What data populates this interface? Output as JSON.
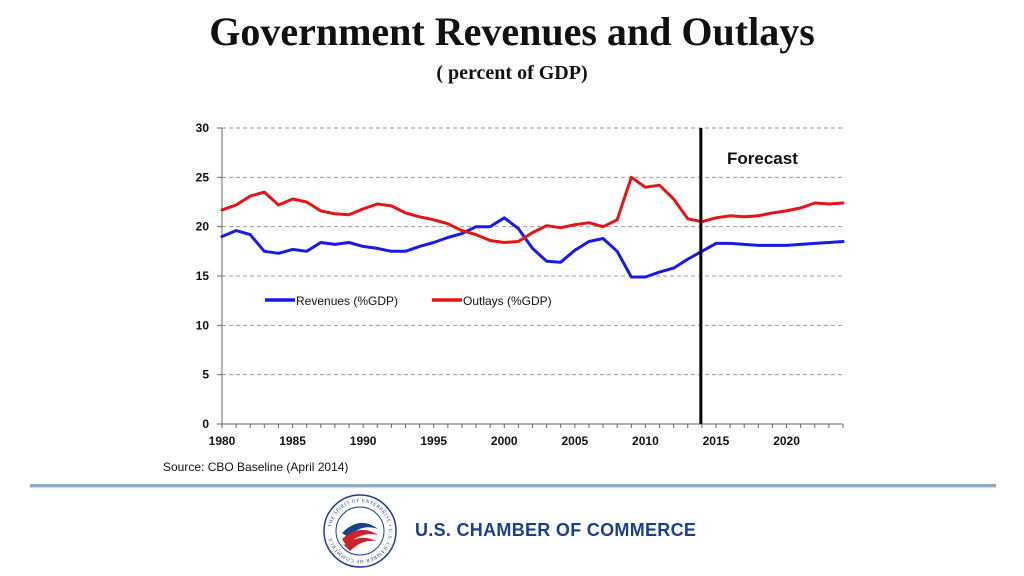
{
  "header": {
    "title": "Government Revenues and Outlays",
    "subtitle": "( percent of GDP)"
  },
  "chart_data": {
    "type": "line",
    "title": "Government Revenues and Outlays",
    "subtitle": "( percent of GDP)",
    "xlabel": "",
    "ylabel": "",
    "xlim": [
      1980,
      2024
    ],
    "ylim": [
      0,
      30
    ],
    "y_ticks": [
      "0",
      "5",
      "10",
      "15",
      "20",
      "25",
      "30"
    ],
    "x_ticks": [
      "1980",
      "1985",
      "1990",
      "1995",
      "2000",
      "2005",
      "2010",
      "2015",
      "2020"
    ],
    "grid": "horizontal dashed",
    "legend_position": "middle-left",
    "x": [
      1980,
      1981,
      1982,
      1983,
      1984,
      1985,
      1986,
      1987,
      1988,
      1989,
      1990,
      1991,
      1992,
      1993,
      1994,
      1995,
      1996,
      1997,
      1998,
      1999,
      2000,
      2001,
      2002,
      2003,
      2004,
      2005,
      2006,
      2007,
      2008,
      2009,
      2010,
      2011,
      2012,
      2013,
      2014,
      2015,
      2016,
      2017,
      2018,
      2019,
      2020,
      2021,
      2022,
      2023,
      2024
    ],
    "series": [
      {
        "name": "Revenues (%GDP)",
        "color": "#1a1ae6",
        "values": [
          19.0,
          19.6,
          19.2,
          17.5,
          17.3,
          17.7,
          17.5,
          18.4,
          18.2,
          18.4,
          18.0,
          17.8,
          17.5,
          17.5,
          18.0,
          18.4,
          18.9,
          19.3,
          20.0,
          20.0,
          20.9,
          19.8,
          17.8,
          16.5,
          16.4,
          17.6,
          18.5,
          18.8,
          17.5,
          14.9,
          14.9,
          15.4,
          15.8,
          16.7,
          17.5,
          18.3,
          18.3,
          18.2,
          18.1,
          18.1,
          18.1,
          18.2,
          18.3,
          18.4,
          18.5
        ]
      },
      {
        "name": "Outlays (%GDP)",
        "color": "#e61414",
        "values": [
          21.7,
          22.2,
          23.1,
          23.5,
          22.2,
          22.8,
          22.5,
          21.6,
          21.3,
          21.2,
          21.8,
          22.3,
          22.1,
          21.4,
          21.0,
          20.7,
          20.3,
          19.6,
          19.2,
          18.6,
          18.4,
          18.5,
          19.4,
          20.1,
          19.9,
          20.2,
          20.4,
          20.0,
          20.7,
          25.0,
          24.0,
          24.2,
          22.8,
          20.8,
          20.5,
          20.9,
          21.1,
          21.0,
          21.1,
          21.4,
          21.6,
          21.9,
          22.4,
          22.3,
          22.4
        ]
      }
    ],
    "annotations": [
      {
        "text": "Forecast",
        "x": 2014,
        "type": "vertical-line"
      }
    ]
  },
  "footer": {
    "source": "Source: CBO Baseline (April 2014)",
    "organization": "U.S. CHAMBER OF COMMERCE",
    "seal_text": "THE SPIRIT OF ENTERPRISE • U.S. CHAMBER OF COMMERCE"
  },
  "colors": {
    "revenues": "#1a1ae6",
    "outlays": "#e61414",
    "grid": "#9a9a9a",
    "brand_blue": "#1b3f8b",
    "brand_red": "#cc2229"
  }
}
